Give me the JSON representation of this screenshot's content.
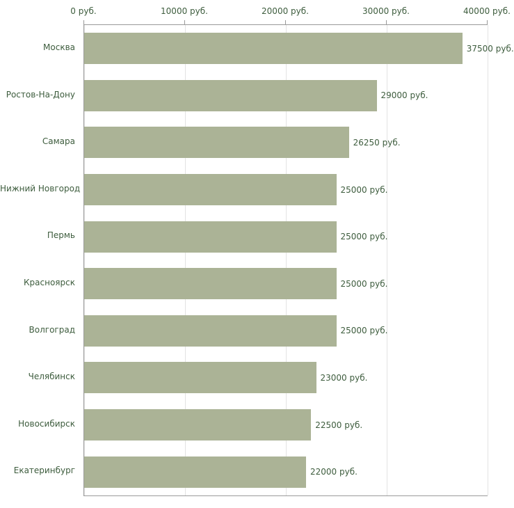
{
  "chart_data": {
    "type": "bar",
    "orientation": "horizontal",
    "title": "",
    "categories": [
      "Москва",
      "Ростов-На-Дону",
      "Самара",
      "Нижний Новгород",
      "Пермь",
      "Красноярск",
      "Волгоград",
      "Челябинск",
      "Новосибирск",
      "Екатеринбург"
    ],
    "values": [
      37500,
      29000,
      26250,
      25000,
      25000,
      25000,
      25000,
      23000,
      22500,
      22000
    ],
    "value_labels": [
      "37500 руб.",
      "29000 руб.",
      "26250 руб.",
      "25000 руб.",
      "25000 руб.",
      "25000 руб.",
      "25000 руб.",
      "23000 руб.",
      "22500 руб.",
      "22000 руб."
    ],
    "x_axis": {
      "min": 0,
      "max": 40000,
      "position": "top",
      "ticks": [
        0,
        10000,
        20000,
        30000,
        40000
      ],
      "tick_labels": [
        "0 руб.",
        "10000 руб.",
        "20000 руб.",
        "30000 руб.",
        "40000 руб."
      ]
    },
    "grid": true,
    "legend": false,
    "colors": {
      "bar": "#abb396",
      "label_text": "#3d5c3d",
      "axis_line": "#999999",
      "gridline": "#e3e3e3",
      "background": "#ffffff"
    }
  }
}
